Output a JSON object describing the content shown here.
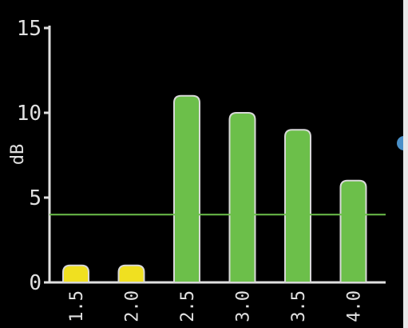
{
  "chart_data": {
    "type": "bar",
    "categories": [
      "1.5",
      "2.0",
      "2.5",
      "3.0",
      "3.5",
      "4.0"
    ],
    "values": [
      1,
      1,
      11,
      10,
      9,
      6
    ],
    "bar_colors": [
      "#f0e020",
      "#f0e020",
      "#6cbf4a",
      "#6cbf4a",
      "#6cbf4a",
      "#6cbf4a"
    ],
    "bar_outline_color": "#d8d8d8",
    "threshold": 4,
    "threshold_color": "#6cbf4a",
    "ylabel": "dB",
    "ylim": [
      0,
      15
    ],
    "yticks": [
      "0",
      "5",
      "10",
      "15"
    ],
    "axis_color": "#e0e0e0",
    "background_color": "#000000",
    "indicator_color": "#4a90c8"
  }
}
